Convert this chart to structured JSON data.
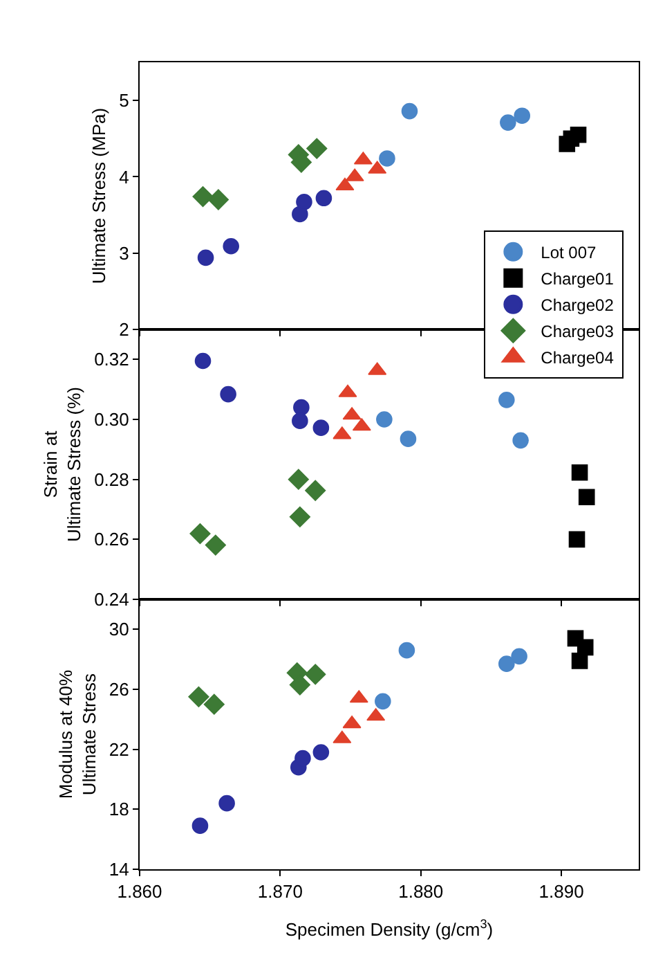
{
  "chart_data": [
    {
      "type": "scatter",
      "ylabel": "Ultimate Stress (MPa)",
      "xlim": [
        1.86,
        1.8955
      ],
      "ylim": [
        2,
        5.5
      ],
      "yticks": [
        2,
        3,
        4,
        5
      ],
      "tick_labels": "y",
      "legend": "right",
      "grid": false,
      "series": [
        {
          "name": "Lot 007",
          "color": "#4a86c8",
          "marker": "circle",
          "x": [
            1.8792,
            1.8862,
            1.8872,
            1.8776
          ],
          "values": [
            4.86,
            4.71,
            4.8,
            4.24
          ]
        },
        {
          "name": "Charge01",
          "color": "#000000",
          "marker": "square",
          "x": [
            1.8904,
            1.8907,
            1.8912
          ],
          "values": [
            4.43,
            4.5,
            4.55
          ]
        },
        {
          "name": "Charge02",
          "color": "#2b2f9e",
          "marker": "circle",
          "x": [
            1.8647,
            1.8665,
            1.8714,
            1.8717,
            1.8731
          ],
          "values": [
            2.94,
            3.09,
            3.51,
            3.67,
            3.72
          ]
        },
        {
          "name": "Charge03",
          "color": "#3d7a35",
          "marker": "diamond",
          "x": [
            1.8645,
            1.8656,
            1.8713,
            1.8715,
            1.8726
          ],
          "values": [
            3.74,
            3.7,
            4.29,
            4.19,
            4.37
          ]
        },
        {
          "name": "Charge04",
          "color": "#e0402a",
          "marker": "triangle",
          "x": [
            1.8746,
            1.8753,
            1.8759,
            1.8769
          ],
          "values": [
            3.88,
            4.0,
            4.22,
            4.1
          ]
        }
      ]
    },
    {
      "type": "scatter",
      "ylabel": "Strain at\nUltimate Stress (%)",
      "xlim": [
        1.86,
        1.8955
      ],
      "ylim": [
        0.24,
        0.33
      ],
      "yticks": [
        {
          "value": 0.24,
          "label": "0.24"
        },
        {
          "value": 0.26,
          "label": "0.26"
        },
        {
          "value": 0.28,
          "label": "0.28"
        },
        {
          "value": 0.3,
          "label": "0.30"
        },
        {
          "value": 0.32,
          "label": "0.32"
        }
      ],
      "tick_labels": "y",
      "grid": false,
      "series": [
        {
          "color": "#4a86c8",
          "marker": "circle",
          "x": [
            1.8774,
            1.8791,
            1.8861,
            1.8871
          ],
          "values": [
            0.3,
            0.2935,
            0.3065,
            0.293
          ]
        },
        {
          "color": "#000000",
          "marker": "square",
          "x": [
            1.8913,
            1.8918,
            1.8911
          ],
          "values": [
            0.2823,
            0.2741,
            0.26
          ]
        },
        {
          "color": "#2b2f9e",
          "marker": "circle",
          "x": [
            1.8645,
            1.8663,
            1.8715,
            1.8714,
            1.8729
          ],
          "values": [
            0.3195,
            0.3084,
            0.304,
            0.2995,
            0.2972
          ]
        },
        {
          "color": "#3d7a35",
          "marker": "diamond",
          "x": [
            1.8643,
            1.8654,
            1.8713,
            1.8714,
            1.8725
          ],
          "values": [
            0.2619,
            0.2581,
            0.28,
            0.2675,
            0.2763
          ]
        },
        {
          "color": "#e0402a",
          "marker": "triangle",
          "x": [
            1.8748,
            1.8751,
            1.8744,
            1.8758,
            1.8769
          ],
          "values": [
            0.3089,
            0.3014,
            0.2949,
            0.2977,
            0.3163
          ]
        }
      ]
    },
    {
      "type": "scatter",
      "ylabel": "Modulus at 40%\nUltimate Stress",
      "xlabel": "Specimen Density (g/cm$^{3}$)",
      "xlim": [
        1.86,
        1.8955
      ],
      "xticks": [
        {
          "value": 1.86,
          "label": "1.860"
        },
        {
          "value": 1.87,
          "label": "1.870"
        },
        {
          "value": 1.88,
          "label": "1.880"
        },
        {
          "value": 1.89,
          "label": "1.890"
        }
      ],
      "ylim": [
        14,
        32
      ],
      "yticks": [
        14,
        18,
        22,
        26,
        30
      ],
      "grid": false,
      "series": [
        {
          "color": "#4a86c8",
          "marker": "circle",
          "x": [
            1.879,
            1.8861,
            1.887,
            1.8773
          ],
          "values": [
            28.6,
            27.7,
            28.2,
            25.2
          ]
        },
        {
          "color": "#000000",
          "marker": "square",
          "x": [
            1.891,
            1.8917,
            1.8913
          ],
          "values": [
            29.4,
            28.8,
            27.9
          ]
        },
        {
          "color": "#2b2f9e",
          "marker": "circle",
          "x": [
            1.8643,
            1.8662,
            1.8713,
            1.8716,
            1.8729
          ],
          "values": [
            16.9,
            18.4,
            20.8,
            21.4,
            21.8
          ]
        },
        {
          "color": "#3d7a35",
          "marker": "diamond",
          "x": [
            1.8642,
            1.8653,
            1.8712,
            1.8714,
            1.8725
          ],
          "values": [
            25.5,
            25.0,
            27.1,
            26.3,
            27.0
          ]
        },
        {
          "color": "#e0402a",
          "marker": "triangle",
          "x": [
            1.8744,
            1.8751,
            1.8756,
            1.8768
          ],
          "values": [
            22.7,
            23.7,
            25.4,
            24.2
          ]
        }
      ]
    }
  ]
}
